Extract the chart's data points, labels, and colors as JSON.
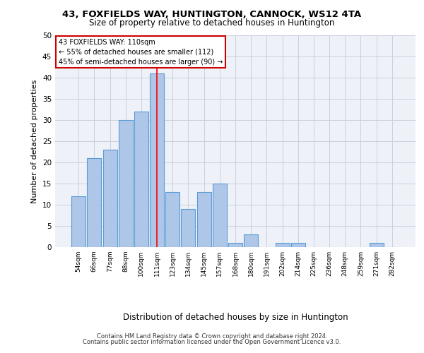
{
  "title1": "43, FOXFIELDS WAY, HUNTINGTON, CANNOCK, WS12 4TA",
  "title2": "Size of property relative to detached houses in Huntington",
  "xlabel": "Distribution of detached houses by size in Huntington",
  "ylabel": "Number of detached properties",
  "categories": [
    "54sqm",
    "66sqm",
    "77sqm",
    "88sqm",
    "100sqm",
    "111sqm",
    "123sqm",
    "134sqm",
    "145sqm",
    "157sqm",
    "168sqm",
    "180sqm",
    "191sqm",
    "202sqm",
    "214sqm",
    "225sqm",
    "236sqm",
    "248sqm",
    "259sqm",
    "271sqm",
    "282sqm"
  ],
  "values": [
    12,
    21,
    23,
    30,
    32,
    41,
    13,
    9,
    13,
    15,
    1,
    3,
    0,
    1,
    1,
    0,
    0,
    0,
    0,
    1,
    0
  ],
  "bar_color": "#aec6e8",
  "bar_edge_color": "#5b9bd5",
  "highlight_line_index": 5,
  "annotation_line1": "43 FOXFIELDS WAY: 110sqm",
  "annotation_line2": "← 55% of detached houses are smaller (112)",
  "annotation_line3": "45% of semi-detached houses are larger (90) →",
  "annotation_box_edge": "#cc0000",
  "ylim": [
    0,
    50
  ],
  "yticks": [
    0,
    5,
    10,
    15,
    20,
    25,
    30,
    35,
    40,
    45,
    50
  ],
  "grid_color": "#c8d0dc",
  "bg_color": "#eef2f8",
  "footer1": "Contains HM Land Registry data © Crown copyright and database right 2024.",
  "footer2": "Contains public sector information licensed under the Open Government Licence v3.0."
}
